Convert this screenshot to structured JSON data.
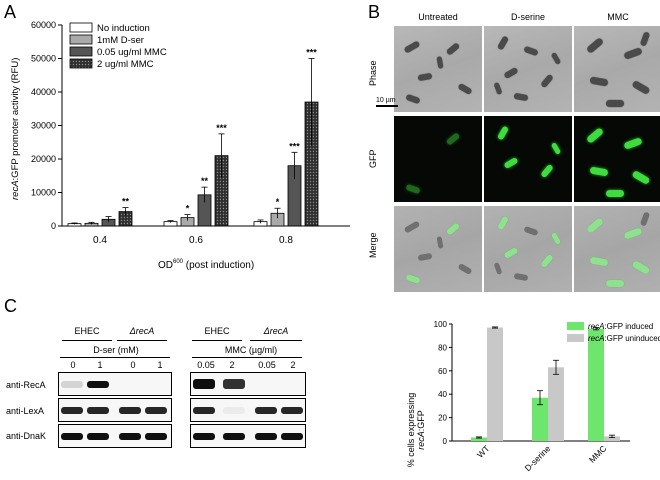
{
  "panels": {
    "a": "A",
    "b": "B",
    "c": "C"
  },
  "chart_a": {
    "ylabel_italic": "recA",
    "ylabel_rest": ":GFP promoter activity (RFU)",
    "xlabel_main": "OD",
    "xlabel_sub": "600",
    "xlabel_rest": " (post induction)"
  },
  "chart_data": [
    {
      "type": "bar",
      "categories": [
        "0.4",
        "0.6",
        "0.8"
      ],
      "ylim": [
        0,
        60000
      ],
      "yticks": [
        "0",
        "10000",
        "20000",
        "30000",
        "40000",
        "50000",
        "60000"
      ],
      "legend": "top-left",
      "series": [
        {
          "name": "No induction",
          "color": "#ffffff",
          "values": [
            700,
            1300,
            1300
          ],
          "errors": [
            200,
            300,
            500
          ],
          "stars": [
            "",
            "",
            ""
          ]
        },
        {
          "name": "1mM D-ser",
          "color": "#aaaaaa",
          "values": [
            800,
            2500,
            3800
          ],
          "errors": [
            300,
            900,
            1500
          ],
          "stars": [
            "",
            "*",
            "*"
          ]
        },
        {
          "name": "0.05 ug/ml MMC",
          "color": "#555555",
          "values": [
            2000,
            9300,
            18000
          ],
          "errors": [
            800,
            2300,
            4000
          ],
          "stars": [
            "",
            "**",
            "***"
          ]
        },
        {
          "name": "2 ug/ml MMC",
          "color": "#3a3a3a",
          "values": [
            4300,
            21000,
            37000
          ],
          "errors": [
            1200,
            6500,
            13000
          ],
          "stars": [
            "**",
            "***",
            "***"
          ]
        }
      ]
    },
    {
      "type": "bar",
      "categories": [
        "WT",
        "D-serine",
        "MMC"
      ],
      "ylim": [
        0,
        100
      ],
      "yticks": [
        "0",
        "20",
        "40",
        "60",
        "80",
        "100"
      ],
      "legend": "top-right",
      "series": [
        {
          "name": "recA:GFP induced",
          "color": "#6ee66e",
          "values": [
            3,
            37,
            96
          ],
          "errors": [
            0.5,
            6,
            1
          ]
        },
        {
          "name": "recA:GFP uninduced",
          "color": "#c8c8c8",
          "values": [
            97,
            63,
            4
          ],
          "errors": [
            0.5,
            6,
            1
          ]
        }
      ]
    }
  ],
  "chart_b2": {
    "ylabel_line1": "% cells expressing",
    "ylabel_line2_italic": "recA",
    "ylabel_line2_rest": ":GFP",
    "legend_italic": "recA",
    "legend_rest1": ":GFP induced",
    "legend_rest2": ":GFP uninduced"
  },
  "microscopy": {
    "columns": [
      "Untreated",
      "D-serine",
      "MMC"
    ],
    "rows": [
      "Phase",
      "GFP",
      "Merge"
    ],
    "scale_bar": "10 µm"
  },
  "blot": {
    "strain_ehec": "EHEC",
    "strain_delta": "ΔrecA",
    "dser_label": "D-ser (mM)",
    "mmc_label": "MMC (µg/ml)",
    "dser_doses": [
      "0",
      "1",
      "0",
      "1"
    ],
    "mmc_doses": [
      "0.05",
      "2",
      "0.05",
      "2"
    ],
    "antibodies": [
      "anti-RecA",
      "anti-LexA",
      "anti-DnaK"
    ]
  }
}
